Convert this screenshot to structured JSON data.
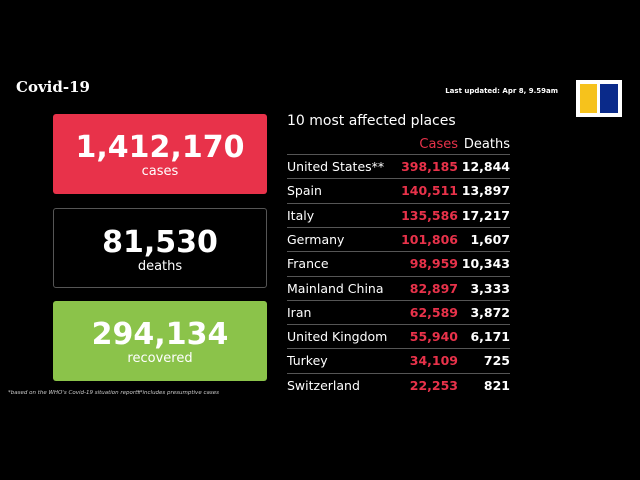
{
  "header": {
    "title": "Covid-19",
    "last_updated": "Last updated: Apr 8, 9.59am"
  },
  "stats": [
    {
      "value": "1,412,170",
      "label": "cases"
    },
    {
      "value": "81,530",
      "label": "deaths"
    },
    {
      "value": "294,134",
      "label": "recovered"
    }
  ],
  "table": {
    "title": "10 most affected places",
    "columns": [
      "Cases",
      "Deaths"
    ],
    "rows": [
      [
        "United States**",
        "398,185",
        "12,844"
      ],
      [
        "Spain",
        "140,511",
        "13,897"
      ],
      [
        "Italy",
        "135,586",
        "17,217"
      ],
      [
        "Germany",
        "101,806",
        "1,607"
      ],
      [
        "France",
        "98,959",
        "10,343"
      ],
      [
        "Mainland China",
        "82,897",
        "3,333"
      ],
      [
        "Iran",
        "62,589",
        "3,872"
      ],
      [
        "United Kingdom",
        "55,940",
        "6,171"
      ],
      [
        "Turkey",
        "34,109",
        "725"
      ],
      [
        "Switzerland",
        "22,253",
        "821"
      ]
    ]
  },
  "footnotes": [
    "*based on the WHO's Covid-19 situation reports",
    "**includes presumptive cases"
  ]
}
